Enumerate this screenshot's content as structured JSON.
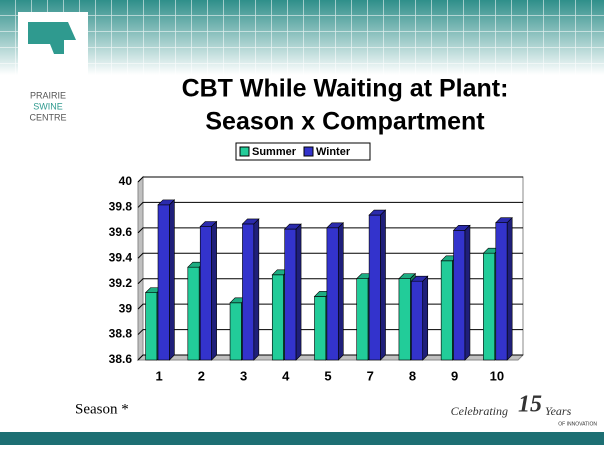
{
  "logo": {
    "lines": [
      "PRAIRIE",
      "SWINE",
      "CENTRE"
    ]
  },
  "footer": {
    "celebrating": "Celebrating",
    "number": "15",
    "years": "Years",
    "tagline": "OF INNOVATION"
  },
  "chart_data": {
    "type": "bar3d",
    "title": [
      "CBT While Waiting at Plant:",
      "Season x Compartment"
    ],
    "annotation": "Season *",
    "categories": [
      "1",
      "2",
      "3",
      "4",
      "5",
      "7",
      "8",
      "9",
      "10"
    ],
    "series": [
      {
        "name": "Summer",
        "color": "#22cc99",
        "values": [
          39.13,
          39.33,
          39.05,
          39.27,
          39.1,
          39.24,
          39.24,
          39.38,
          39.44
        ]
      },
      {
        "name": "Winter",
        "color": "#3333cc",
        "values": [
          39.82,
          39.65,
          39.67,
          39.63,
          39.64,
          39.74,
          39.22,
          39.62,
          39.68
        ]
      }
    ],
    "ylim": [
      38.6,
      40
    ],
    "yticks": [
      {
        "value": 38.6,
        "label": "38.6"
      },
      {
        "value": 38.8,
        "label": "38.8"
      },
      39,
      {
        "value": 39.2,
        "label": "39.2"
      },
      {
        "value": 39.4,
        "label": "39.4"
      },
      {
        "value": 39.6,
        "label": "39.6"
      },
      {
        "value": 39.8,
        "label": "39.8"
      },
      40
    ],
    "grid": true,
    "legend": "top"
  }
}
